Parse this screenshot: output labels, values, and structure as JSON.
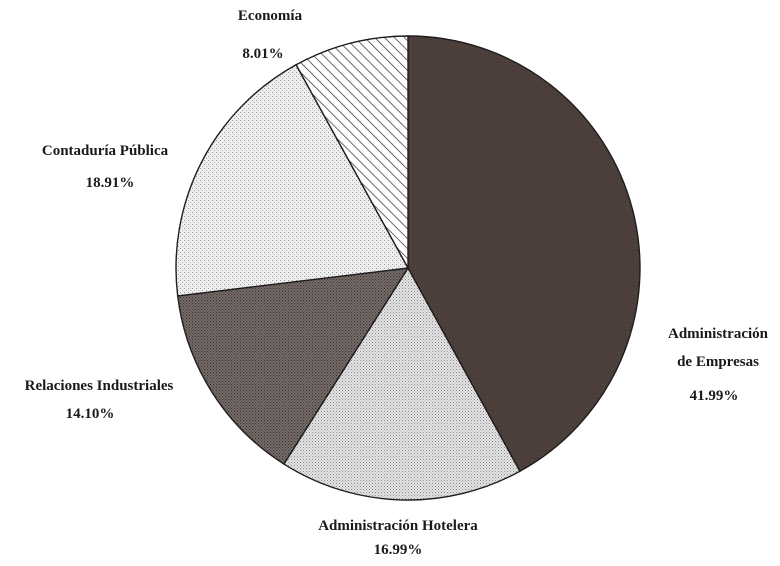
{
  "chart_data": {
    "type": "pie",
    "start_angle_deg": 0,
    "direction": "clockwise",
    "slices": [
      {
        "label_lines": [
          "Administración",
          "de Empresas"
        ],
        "value": 41.99,
        "value_label": "41.99%",
        "color": "#4a3c39",
        "pattern": "solid-dark"
      },
      {
        "label_lines": [
          "Administración Hotelera"
        ],
        "value": 16.99,
        "value_label": "16.99%",
        "color": "#d9d9d9",
        "pattern": "fine-dots"
      },
      {
        "label_lines": [
          "Relaciones Industriales"
        ],
        "value": 14.1,
        "value_label": "14.10%",
        "color": "#6e6462",
        "pattern": "dark-dots"
      },
      {
        "label_lines": [
          "Contaduría Pública"
        ],
        "value": 18.91,
        "value_label": "18.91%",
        "color": "#e6e6e6",
        "pattern": "light-dots"
      },
      {
        "label_lines": [
          "Economía"
        ],
        "value": 8.01,
        "value_label": "8.01%",
        "color": "#ffffff",
        "pattern": "diagonal-hatch"
      }
    ]
  }
}
